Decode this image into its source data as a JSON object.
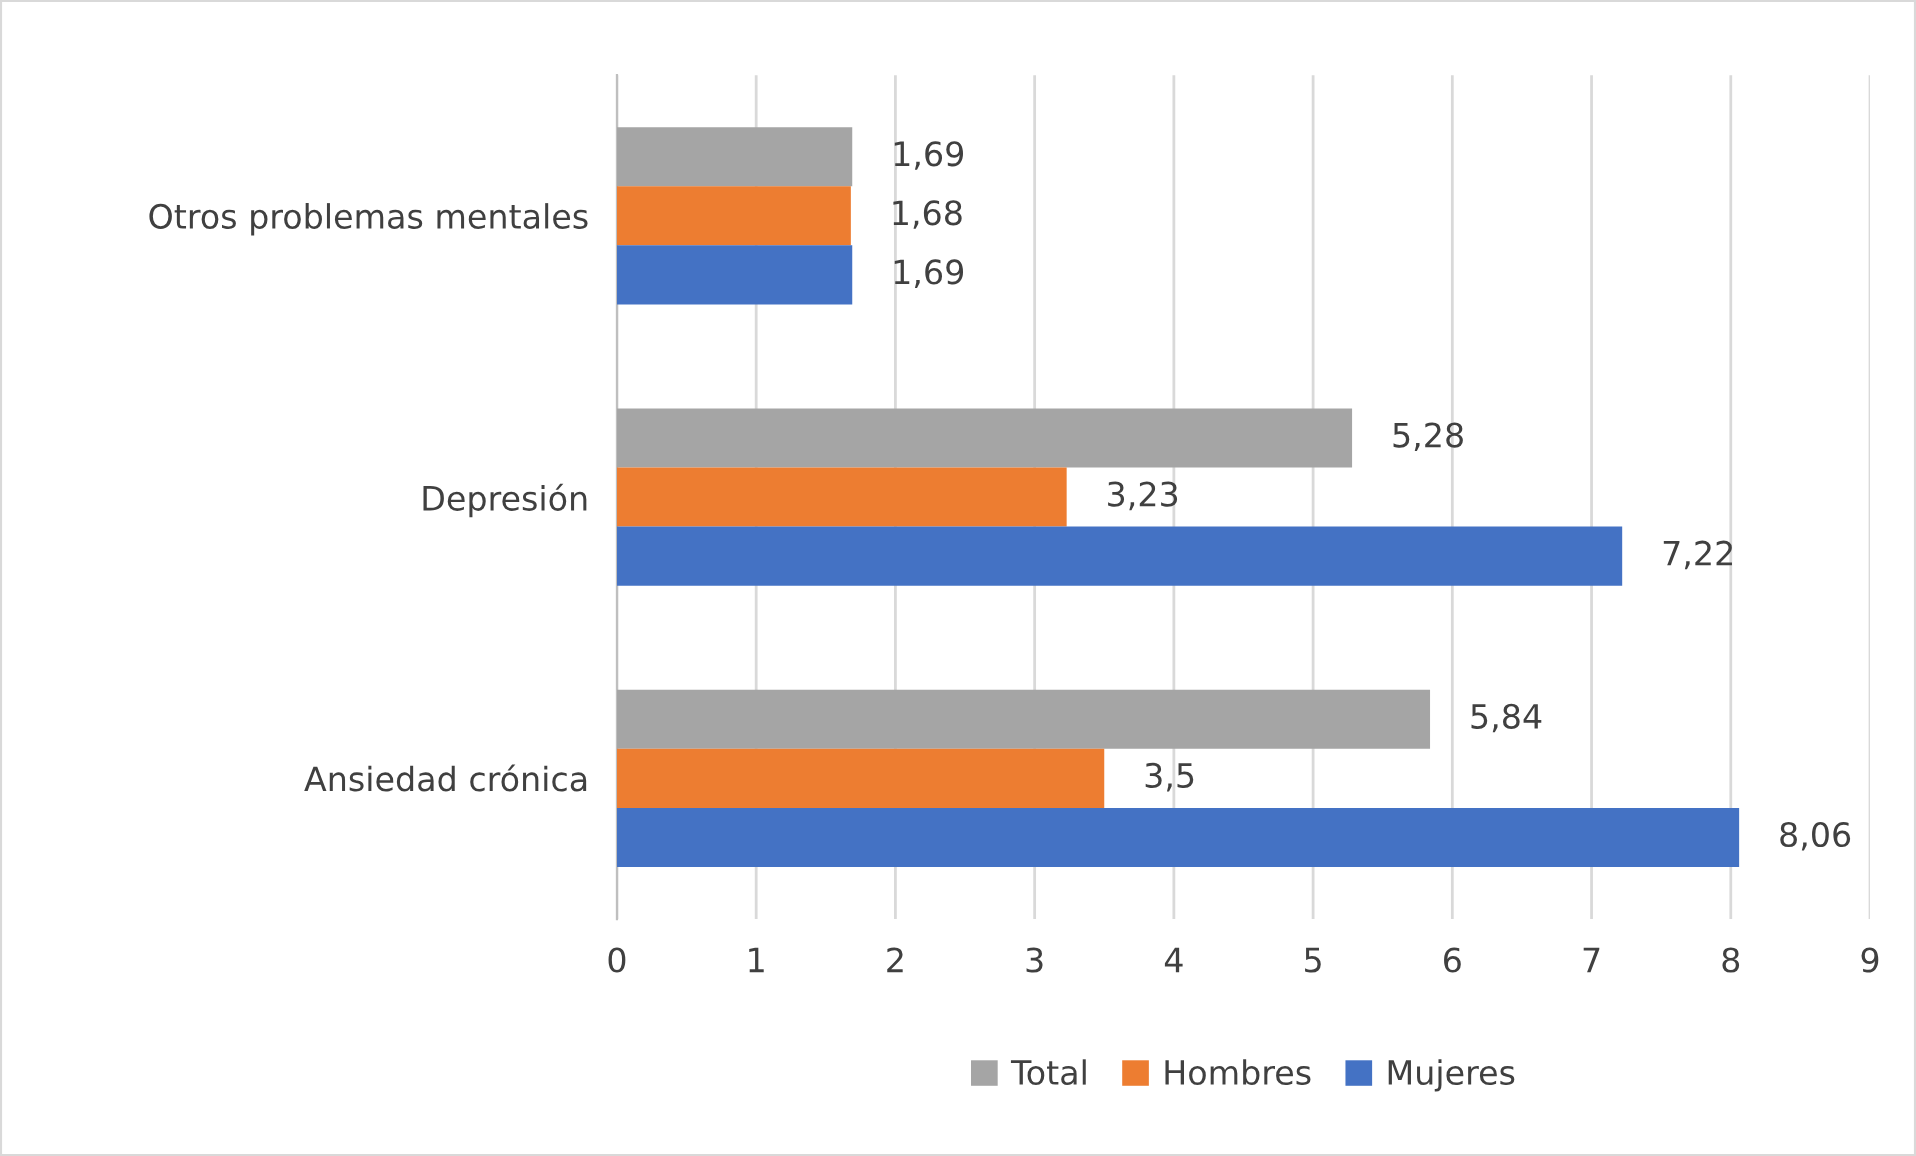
{
  "chart_data": {
    "type": "bar",
    "orientation": "horizontal",
    "categories": [
      "Otros problemas mentales",
      "Depresión",
      "Ansiedad crónica"
    ],
    "series": [
      {
        "name": "Total",
        "color": "#a5a5a5",
        "values": [
          1.69,
          5.28,
          5.84
        ],
        "value_labels": [
          "1,69",
          "5,28",
          "5,84"
        ]
      },
      {
        "name": "Hombres",
        "color": "#ed7d31",
        "values": [
          1.68,
          3.23,
          3.5
        ],
        "value_labels": [
          "1,68",
          "3,23",
          "3,5"
        ]
      },
      {
        "name": "Mujeres",
        "color": "#4472c4",
        "values": [
          1.69,
          7.22,
          8.06
        ],
        "value_labels": [
          "1,69",
          "7,22",
          "8,06"
        ]
      }
    ],
    "xlim": [
      0,
      9
    ],
    "xticks": [
      0,
      1,
      2,
      3,
      4,
      5,
      6,
      7,
      8,
      9
    ],
    "grid": "x",
    "legend": "bottom"
  }
}
